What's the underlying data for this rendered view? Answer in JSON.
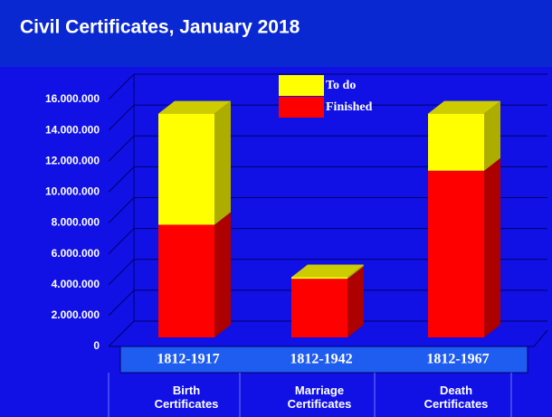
{
  "chart_data": {
    "type": "bar3d_stacked",
    "title": "Civil Certificates,  January 2018",
    "categories": [
      "Birth Certificates",
      "Marriage Certificates",
      "Death Certificates"
    ],
    "periods": [
      "1812-1917",
      "1812-1942",
      "1812-1967"
    ],
    "series": [
      {
        "name": "Finished",
        "color": "#ff0000",
        "values": [
          7300000,
          3800000,
          10800000
        ]
      },
      {
        "name": "To do",
        "color": "#ffff00",
        "values": [
          7200000,
          100000,
          3700000
        ]
      }
    ],
    "ylim": [
      0,
      16000000
    ],
    "yticks": [
      0,
      {
        "value": 2000000,
        "label": "2.000.000"
      },
      {
        "value": 4000000,
        "label": "4.000.000"
      },
      {
        "value": 6000000,
        "label": "6.000.000"
      },
      {
        "value": 8000000,
        "label": "8.000.000"
      },
      {
        "value": 10000000,
        "label": "10.000.000"
      },
      {
        "value": 12000000,
        "label": "12.000.000"
      },
      {
        "value": 14000000,
        "label": "14.000.000"
      },
      {
        "value": 16000000,
        "label": "16.000.000"
      }
    ],
    "grid": true
  }
}
